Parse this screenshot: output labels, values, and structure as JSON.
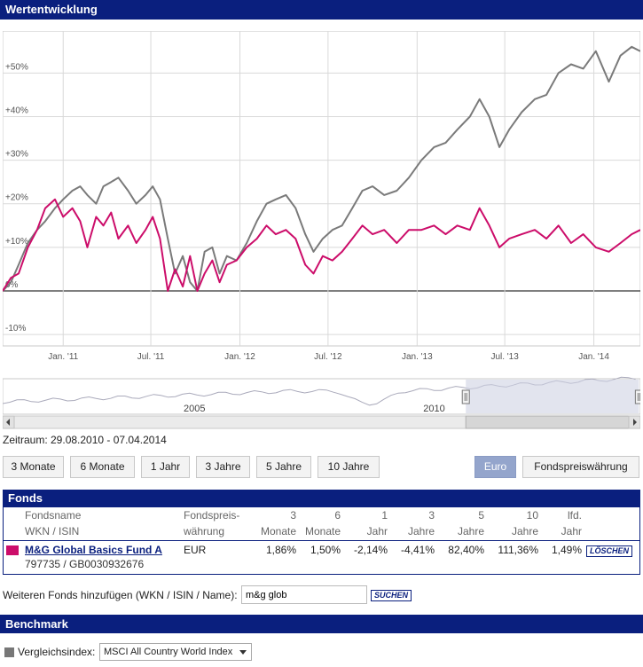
{
  "sections": {
    "wertentwicklung": "Wertentwicklung",
    "fonds": "Fonds",
    "benchmark": "Benchmark"
  },
  "chart_data": {
    "type": "line",
    "yticks": [
      "+50%",
      "+40%",
      "+30%",
      "+20%",
      "+10%",
      "0%",
      "-10%"
    ],
    "ytick_values": [
      50,
      40,
      30,
      20,
      10,
      0,
      -10
    ],
    "ylim": [
      -12,
      58
    ],
    "xticks": [
      "Jan. '11",
      "Jul. '11",
      "Jan. '12",
      "Jul. '12",
      "Jan. '13",
      "Jul. '13",
      "Jan. '14"
    ],
    "xtick_dates": [
      "2011-01-01",
      "2011-07-01",
      "2012-01-01",
      "2012-07-01",
      "2013-01-01",
      "2013-07-01",
      "2014-01-01"
    ],
    "xlim": [
      "2010-08-29",
      "2014-04-07"
    ],
    "grid": true,
    "series": [
      {
        "name": "M&G Global Basics Fund A",
        "color": "#cc0d6a",
        "points": [
          [
            "2010-08-29",
            0
          ],
          [
            "2010-09-15",
            3
          ],
          [
            "2010-10-01",
            4
          ],
          [
            "2010-10-20",
            10
          ],
          [
            "2010-11-08",
            14
          ],
          [
            "2010-11-25",
            19
          ],
          [
            "2010-12-15",
            21
          ],
          [
            "2011-01-01",
            17
          ],
          [
            "2011-01-20",
            19
          ],
          [
            "2011-02-05",
            16
          ],
          [
            "2011-02-20",
            10
          ],
          [
            "2011-03-10",
            17
          ],
          [
            "2011-03-25",
            15
          ],
          [
            "2011-04-10",
            18
          ],
          [
            "2011-04-25",
            12
          ],
          [
            "2011-05-15",
            15
          ],
          [
            "2011-06-01",
            11
          ],
          [
            "2011-06-20",
            14
          ],
          [
            "2011-07-05",
            17
          ],
          [
            "2011-07-20",
            12
          ],
          [
            "2011-08-05",
            0
          ],
          [
            "2011-08-20",
            5
          ],
          [
            "2011-09-05",
            1
          ],
          [
            "2011-09-20",
            8
          ],
          [
            "2011-10-05",
            0
          ],
          [
            "2011-10-20",
            4
          ],
          [
            "2011-11-05",
            7
          ],
          [
            "2011-11-20",
            2
          ],
          [
            "2011-12-05",
            6
          ],
          [
            "2011-12-25",
            7
          ],
          [
            "2012-01-15",
            10
          ],
          [
            "2012-02-05",
            12
          ],
          [
            "2012-02-25",
            15
          ],
          [
            "2012-03-15",
            13
          ],
          [
            "2012-04-05",
            14
          ],
          [
            "2012-04-25",
            12
          ],
          [
            "2012-05-15",
            6
          ],
          [
            "2012-06-01",
            4
          ],
          [
            "2012-06-20",
            8
          ],
          [
            "2012-07-10",
            7
          ],
          [
            "2012-07-30",
            9
          ],
          [
            "2012-08-20",
            12
          ],
          [
            "2012-09-10",
            15
          ],
          [
            "2012-10-01",
            13
          ],
          [
            "2012-10-25",
            14
          ],
          [
            "2012-11-20",
            11
          ],
          [
            "2012-12-15",
            14
          ],
          [
            "2013-01-10",
            14
          ],
          [
            "2013-02-05",
            15
          ],
          [
            "2013-03-01",
            13
          ],
          [
            "2013-03-25",
            15
          ],
          [
            "2013-04-20",
            14
          ],
          [
            "2013-05-10",
            19
          ],
          [
            "2013-05-30",
            15
          ],
          [
            "2013-06-20",
            10
          ],
          [
            "2013-07-10",
            12
          ],
          [
            "2013-08-05",
            13
          ],
          [
            "2013-09-01",
            14
          ],
          [
            "2013-09-25",
            12
          ],
          [
            "2013-10-20",
            15
          ],
          [
            "2013-11-15",
            11
          ],
          [
            "2013-12-10",
            13
          ],
          [
            "2014-01-05",
            10
          ],
          [
            "2014-02-01",
            9
          ],
          [
            "2014-02-25",
            11
          ],
          [
            "2014-03-20",
            13
          ],
          [
            "2014-04-07",
            14
          ]
        ]
      },
      {
        "name": "MSCI All Country World Index",
        "color": "#7a7a7a",
        "points": [
          [
            "2010-08-29",
            0
          ],
          [
            "2010-09-15",
            2
          ],
          [
            "2010-10-01",
            6
          ],
          [
            "2010-10-20",
            11
          ],
          [
            "2010-11-08",
            14
          ],
          [
            "2010-11-25",
            16
          ],
          [
            "2010-12-15",
            19
          ],
          [
            "2011-01-01",
            21
          ],
          [
            "2011-01-20",
            23
          ],
          [
            "2011-02-05",
            24
          ],
          [
            "2011-02-20",
            22
          ],
          [
            "2011-03-10",
            20
          ],
          [
            "2011-03-25",
            24
          ],
          [
            "2011-04-10",
            25
          ],
          [
            "2011-04-25",
            26
          ],
          [
            "2011-05-15",
            23
          ],
          [
            "2011-06-01",
            20
          ],
          [
            "2011-06-20",
            22
          ],
          [
            "2011-07-05",
            24
          ],
          [
            "2011-07-20",
            21
          ],
          [
            "2011-08-05",
            12
          ],
          [
            "2011-08-20",
            4
          ],
          [
            "2011-09-05",
            8
          ],
          [
            "2011-09-20",
            2
          ],
          [
            "2011-10-05",
            0
          ],
          [
            "2011-10-20",
            9
          ],
          [
            "2011-11-05",
            10
          ],
          [
            "2011-11-20",
            4
          ],
          [
            "2011-12-05",
            8
          ],
          [
            "2011-12-25",
            7
          ],
          [
            "2012-01-15",
            11
          ],
          [
            "2012-02-05",
            16
          ],
          [
            "2012-02-25",
            20
          ],
          [
            "2012-03-15",
            21
          ],
          [
            "2012-04-05",
            22
          ],
          [
            "2012-04-25",
            19
          ],
          [
            "2012-05-15",
            13
          ],
          [
            "2012-06-01",
            9
          ],
          [
            "2012-06-20",
            12
          ],
          [
            "2012-07-10",
            14
          ],
          [
            "2012-07-30",
            15
          ],
          [
            "2012-08-20",
            19
          ],
          [
            "2012-09-10",
            23
          ],
          [
            "2012-10-01",
            24
          ],
          [
            "2012-10-25",
            22
          ],
          [
            "2012-11-20",
            23
          ],
          [
            "2012-12-15",
            26
          ],
          [
            "2013-01-10",
            30
          ],
          [
            "2013-02-05",
            33
          ],
          [
            "2013-03-01",
            34
          ],
          [
            "2013-03-25",
            37
          ],
          [
            "2013-04-20",
            40
          ],
          [
            "2013-05-10",
            44
          ],
          [
            "2013-05-30",
            40
          ],
          [
            "2013-06-20",
            33
          ],
          [
            "2013-07-10",
            37
          ],
          [
            "2013-08-05",
            41
          ],
          [
            "2013-09-01",
            44
          ],
          [
            "2013-09-25",
            45
          ],
          [
            "2013-10-20",
            50
          ],
          [
            "2013-11-15",
            52
          ],
          [
            "2013-12-10",
            51
          ],
          [
            "2014-01-05",
            55
          ],
          [
            "2014-02-01",
            48
          ],
          [
            "2014-02-25",
            54
          ],
          [
            "2014-03-20",
            56
          ],
          [
            "2014-04-07",
            55
          ]
        ]
      }
    ],
    "navigator": {
      "labels": [
        "2005",
        "2010"
      ],
      "label_years": [
        2005,
        2010
      ],
      "start_year": 2001,
      "end_year": 2014.3,
      "selected_from": 2010.66,
      "selected_to": 2014.27
    }
  },
  "zeitraum": "Zeitraum: 29.08.2010 - 07.04.2014",
  "period_buttons": [
    "3 Monate",
    "6 Monate",
    "1 Jahr",
    "3 Jahre",
    "5 Jahre",
    "10 Jahre"
  ],
  "currency_buttons": {
    "euro": "Euro",
    "fonds": "Fondspreiswährung"
  },
  "currency_selected": "Euro",
  "table": {
    "headers": {
      "name1": "Fondsname",
      "name2": "WKN / ISIN",
      "cur1": "Fondspreis-",
      "cur2": "währung",
      "m3a": "3",
      "m3b": "Monate",
      "m6a": "6",
      "m6b": "Monate",
      "y1a": "1",
      "y1b": "Jahr",
      "y3a": "3",
      "y3b": "Jahre",
      "y5a": "5",
      "y5b": "Jahre",
      "y10a": "10",
      "y10b": "Jahre",
      "lfda": "lfd.",
      "lfdb": "Jahr"
    },
    "row": {
      "color": "#cc0d6a",
      "name": "M&G Global Basics Fund A",
      "ids": "797735 / GB0030932676",
      "currency": "EUR",
      "m3": "1,86%",
      "m6": "1,50%",
      "y1": "-2,14%",
      "y3": "-4,41%",
      "y5": "82,40%",
      "y10": "111,36%",
      "lfd": "1,49%",
      "delete_label": "LÖSCHEN"
    }
  },
  "add_fund": {
    "label": "Weiteren Fonds hinzufügen (WKN / ISIN / Name):",
    "value": "m&g glob",
    "search_label": "SUCHEN"
  },
  "benchmark": {
    "checkbox_color": "#777777",
    "label": "Vergleichsindex:",
    "selected": "MSCI All Country World Index"
  }
}
